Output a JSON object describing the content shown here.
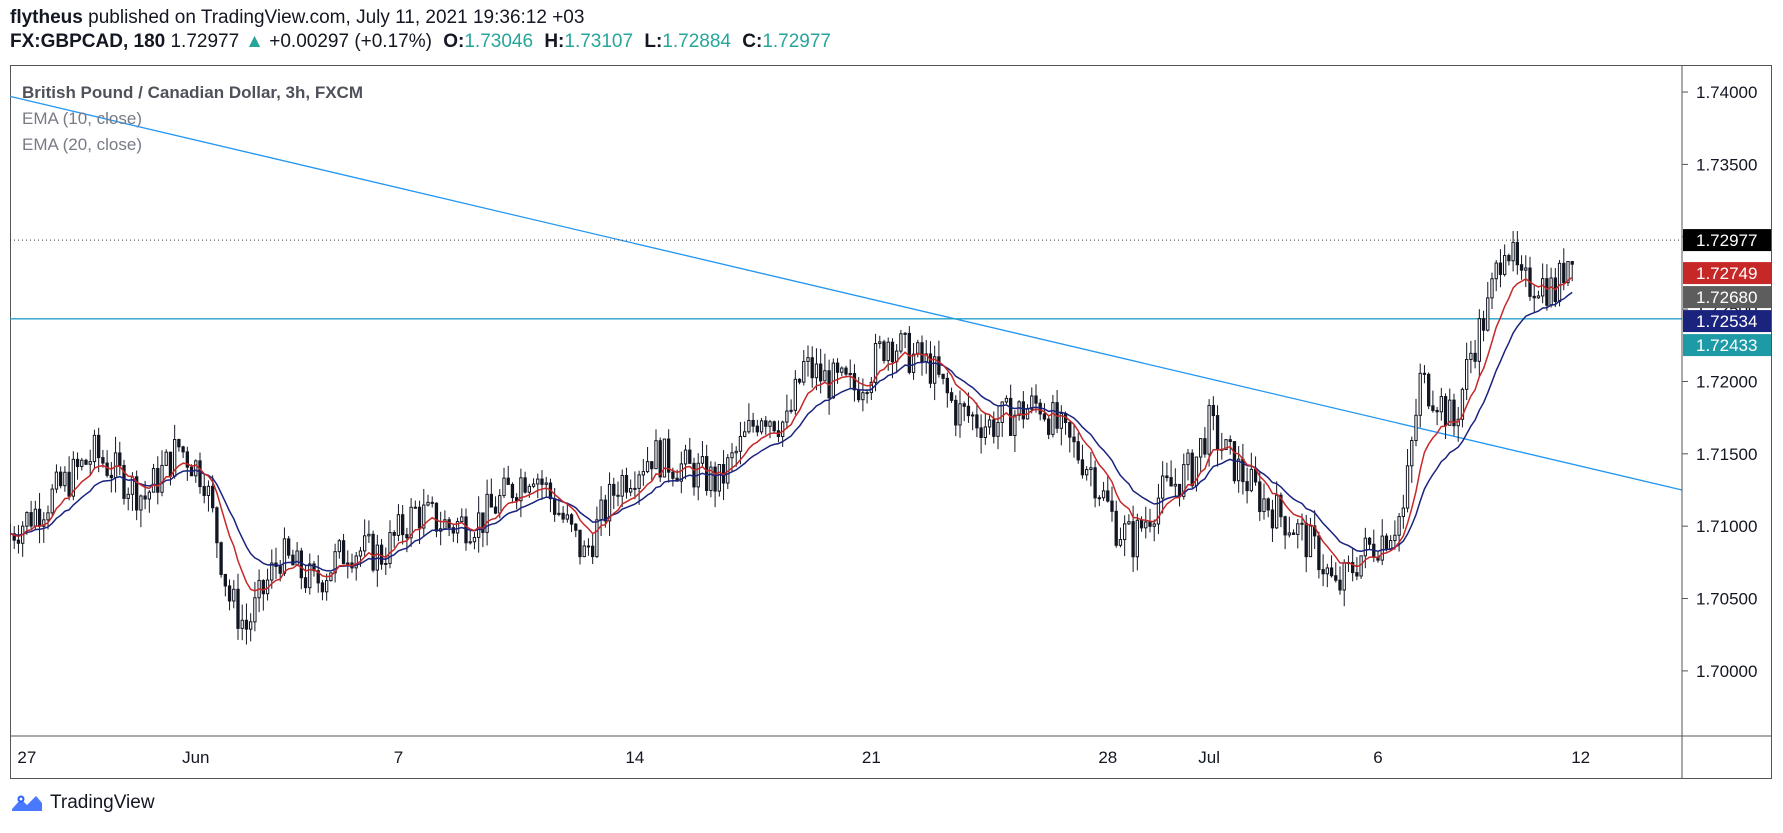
{
  "header": {
    "author": "flytheus",
    "published": "published on TradingView.com, July 11, 2021 19:36:12 +03",
    "symbol": "FX:GBPCAD, 180",
    "last": "1.72977",
    "arrow": "▲",
    "change": "+0.00297 (+0.17%)",
    "o_label": "O:",
    "o_value": "1.73046",
    "h_label": "H:",
    "h_value": "1.73107",
    "l_label": "L:",
    "l_value": "1.72884",
    "c_label": "C:",
    "c_value": "1.72977"
  },
  "legend": {
    "title": "British Pound / Canadian Dollar, 3h, FXCM",
    "ema10": "EMA (10, close)",
    "ema20": "EMA (20, close)"
  },
  "footer": {
    "brand": "TradingView",
    "logo_icon": "tradingview-logo-icon"
  },
  "colors": {
    "up": "#26a69a",
    "candle": "#131722",
    "ema10": "#c62828",
    "ema20": "#1a237e",
    "trendline": "#2196f3",
    "hline": "#26a0c8"
  },
  "chart_data": {
    "type": "candlestick",
    "y_axis": {
      "range": [
        1.6955,
        1.7418
      ],
      "ticks": [
        "1.74000",
        "1.73500",
        "1.73000",
        "1.72500",
        "1.72000",
        "1.71500",
        "1.71000",
        "1.70500",
        "1.70000"
      ]
    },
    "x_axis": {
      "range": [
        "2021-05-26T12:00",
        "2021-07-15T00:00"
      ],
      "ticks": [
        {
          "date": "2021-05-27",
          "label": "27"
        },
        {
          "date": "2021-06-01",
          "label": "Jun"
        },
        {
          "date": "2021-06-07",
          "label": "7"
        },
        {
          "date": "2021-06-14",
          "label": "14"
        },
        {
          "date": "2021-06-21",
          "label": "21"
        },
        {
          "date": "2021-06-28",
          "label": "28"
        },
        {
          "date": "2021-07-01",
          "label": "Jul"
        },
        {
          "date": "2021-07-06",
          "label": "6"
        },
        {
          "date": "2021-07-12",
          "label": "12"
        }
      ]
    },
    "price_labels": [
      {
        "label": "1.72977",
        "value": 1.72977,
        "color": "#000000"
      },
      {
        "label": "1.72749",
        "value": 1.72749,
        "color": "#c62828"
      },
      {
        "label": "1.72680",
        "value": 1.7268,
        "color": "#5d5d5d"
      },
      {
        "label": "1.72534",
        "value": 1.72534,
        "color": "#1a237e"
      },
      {
        "label": "1.72433",
        "value": 1.72433,
        "color": "#1e9aa6"
      }
    ],
    "horizontal_line": 1.72433,
    "last_price_line": 1.72977,
    "trendline": [
      {
        "date": "2021-05-26T12:00",
        "value": 1.7397
      },
      {
        "date": "2021-07-15T00:00",
        "value": 1.7125
      }
    ],
    "price_path": [
      [
        "2021-05-26T12:00",
        1.7095
      ],
      [
        "2021-05-27T12:00",
        1.7115
      ],
      [
        "2021-05-29T00:00",
        1.715
      ],
      [
        "2021-05-30T12:00",
        1.712
      ],
      [
        "2021-05-31T12:00",
        1.7155
      ],
      [
        "2021-06-01T06:00",
        1.7135
      ],
      [
        "2021-06-02T00:00",
        1.705
      ],
      [
        "2021-06-02T12:00",
        1.703
      ],
      [
        "2021-06-03T12:00",
        1.708
      ],
      [
        "2021-06-04T12:00",
        1.706
      ],
      [
        "2021-06-05T12:00",
        1.7085
      ],
      [
        "2021-06-06T12:00",
        1.708
      ],
      [
        "2021-06-07T12:00",
        1.711
      ],
      [
        "2021-06-08T12:00",
        1.71
      ],
      [
        "2021-06-09T12:00",
        1.7105
      ],
      [
        "2021-06-10T12:00",
        1.713
      ],
      [
        "2021-06-11T00:00",
        1.714
      ],
      [
        "2021-06-11T18:00",
        1.711
      ],
      [
        "2021-06-12T12:00",
        1.708
      ],
      [
        "2021-06-13T12:00",
        1.713
      ],
      [
        "2021-06-14T12:00",
        1.715
      ],
      [
        "2021-06-15T12:00",
        1.714
      ],
      [
        "2021-06-16T12:00",
        1.713
      ],
      [
        "2021-06-17T00:00",
        1.715
      ],
      [
        "2021-06-17T18:00",
        1.718
      ],
      [
        "2021-06-18T12:00",
        1.717
      ],
      [
        "2021-06-19T00:00",
        1.721
      ],
      [
        "2021-06-19T18:00",
        1.72
      ],
      [
        "2021-06-20T12:00",
        1.7195
      ],
      [
        "2021-06-21T00:00",
        1.721
      ],
      [
        "2021-06-21T12:00",
        1.723
      ],
      [
        "2021-06-22T00:00",
        1.722
      ],
      [
        "2021-06-22T18:00",
        1.721
      ],
      [
        "2021-06-23T12:00",
        1.718
      ],
      [
        "2021-06-24T12:00",
        1.717
      ],
      [
        "2021-06-25T12:00",
        1.718
      ],
      [
        "2021-06-26T00:00",
        1.7185
      ],
      [
        "2021-06-26T18:00",
        1.716
      ],
      [
        "2021-06-27T12:00",
        1.714
      ],
      [
        "2021-06-28T06:00",
        1.71
      ],
      [
        "2021-06-28T18:00",
        1.709
      ],
      [
        "2021-06-29T12:00",
        1.712
      ],
      [
        "2021-06-30T12:00",
        1.714
      ],
      [
        "2021-07-01T00:00",
        1.717
      ],
      [
        "2021-07-01T12:00",
        1.715
      ],
      [
        "2021-07-02T12:00",
        1.712
      ],
      [
        "2021-07-03T12:00",
        1.71
      ],
      [
        "2021-07-04T06:00",
        1.708
      ],
      [
        "2021-07-04T18:00",
        1.7055
      ],
      [
        "2021-07-05T12:00",
        1.708
      ],
      [
        "2021-07-06T06:00",
        1.7095
      ],
      [
        "2021-07-06T18:00",
        1.711
      ],
      [
        "2021-07-07T06:00",
        1.72
      ],
      [
        "2021-07-07T18:00",
        1.719
      ],
      [
        "2021-07-08T06:00",
        1.717
      ],
      [
        "2021-07-08T18:00",
        1.722
      ],
      [
        "2021-07-09T06:00",
        1.725
      ],
      [
        "2021-07-09T18:00",
        1.73
      ],
      [
        "2021-07-10T06:00",
        1.7265
      ],
      [
        "2021-07-10T18:00",
        1.727
      ],
      [
        "2021-07-11T06:00",
        1.7262
      ],
      [
        "2021-07-11T19:30",
        1.7298
      ]
    ]
  }
}
